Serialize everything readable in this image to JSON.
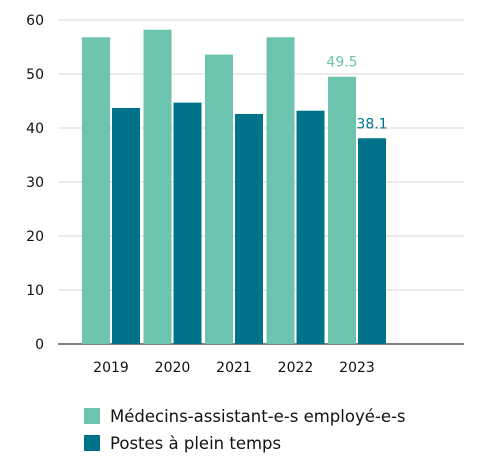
{
  "chart_data": {
    "type": "bar",
    "categories": [
      "2019",
      "2020",
      "2021",
      "2022",
      "2023"
    ],
    "series": [
      {
        "name": "Médecins-assistant-e-s employé-e-s",
        "values": [
          56.8,
          58.2,
          53.6,
          56.8,
          49.5
        ],
        "color": "#6cc4ae"
      },
      {
        "name": "Postes à plein temps",
        "values": [
          43.7,
          44.7,
          42.6,
          43.2,
          38.1
        ],
        "color": "#00728a"
      }
    ],
    "data_labels": [
      {
        "category": "2023",
        "series": 0,
        "text": "49.5"
      },
      {
        "category": "2023",
        "series": 1,
        "text": "38.1"
      }
    ],
    "y_ticks": [
      "0",
      "10",
      "20",
      "30",
      "40",
      "50",
      "60"
    ],
    "ylim": [
      0,
      60
    ],
    "grid": true,
    "legend_position": "bottom",
    "title": "",
    "xlabel": "",
    "ylabel": ""
  }
}
